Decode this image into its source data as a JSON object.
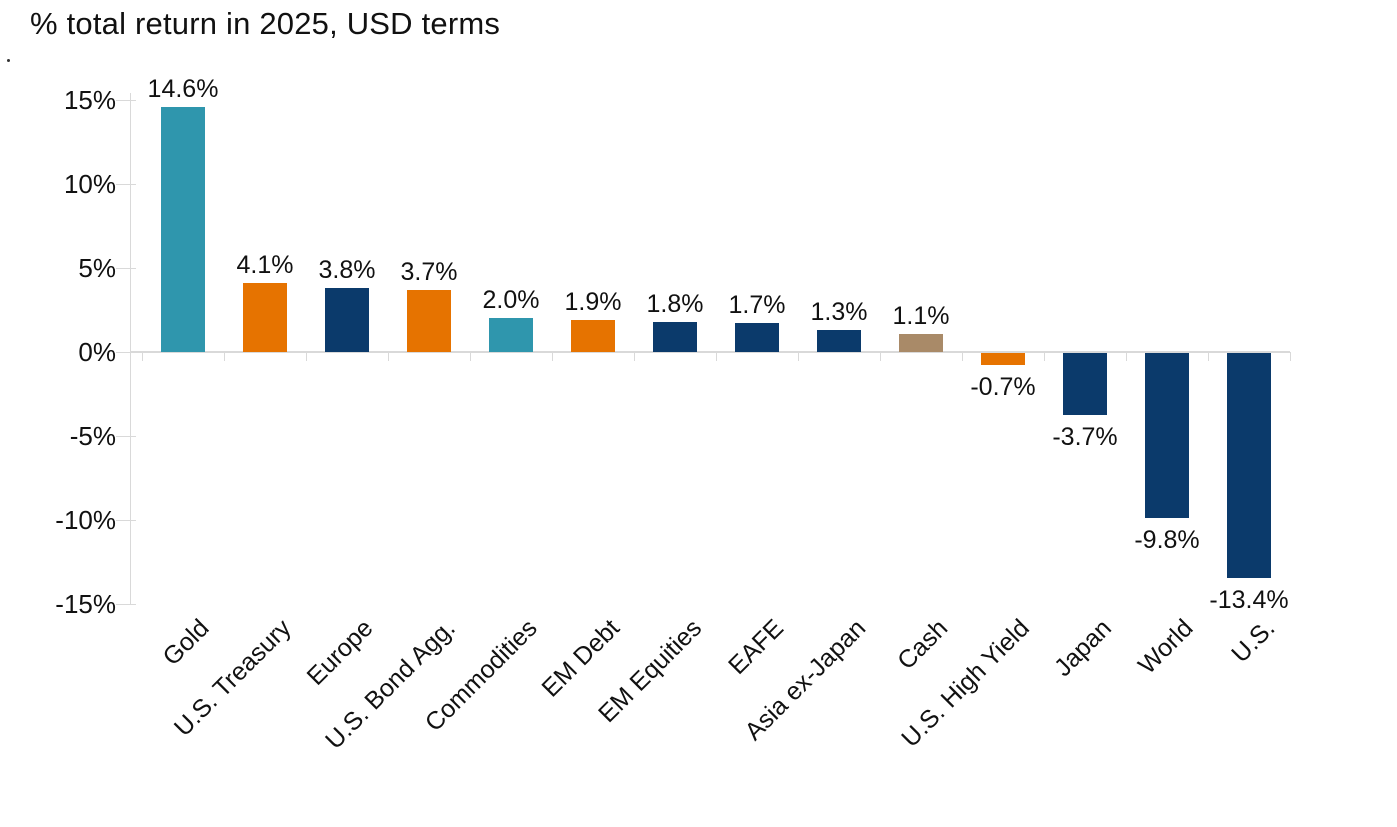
{
  "title": "% total return in 2025, USD terms",
  "stray_mark": ".",
  "chart_data": {
    "type": "bar",
    "title": "% total return in 2025, USD terms",
    "categories": [
      "Gold",
      "U.S. Treasury",
      "Europe",
      "U.S. Bond Agg.",
      "Commodities",
      "EM Debt",
      "EM Equities",
      "EAFE",
      "Asia ex-Japan",
      "Cash",
      "U.S. High Yield",
      "Japan",
      "World",
      "U.S."
    ],
    "values": [
      14.6,
      4.1,
      3.8,
      3.7,
      2.0,
      1.9,
      1.8,
      1.7,
      1.3,
      1.1,
      -0.7,
      -3.7,
      -9.8,
      -13.4
    ],
    "value_labels": [
      "14.6%",
      "4.1%",
      "3.8%",
      "3.7%",
      "2.0%",
      "1.9%",
      "1.8%",
      "1.7%",
      "1.3%",
      "1.1%",
      "-0.7%",
      "-3.7%",
      "-9.8%",
      "-13.4%"
    ],
    "bar_colors": [
      "#2F96AD",
      "#E67300",
      "#0B3A6B",
      "#E67300",
      "#2F96AD",
      "#E67300",
      "#0B3A6B",
      "#0B3A6B",
      "#0B3A6B",
      "#A98A68",
      "#E67300",
      "#0B3A6B",
      "#0B3A6B",
      "#0B3A6B"
    ],
    "palette": {
      "teal": "#2F96AD",
      "orange": "#E67300",
      "navy": "#0B3A6B",
      "tan": "#A98A68"
    },
    "xlabel": "",
    "ylabel": "",
    "ylim": [
      -15,
      15
    ],
    "yticks": {
      "values": [
        15,
        10,
        5,
        0,
        -5,
        -10,
        -15
      ],
      "labels": [
        "15%",
        "10%",
        "5%",
        "0%",
        "-5%",
        "-10%",
        "-15%"
      ]
    },
    "legend": "none",
    "grid": "zero baseline only",
    "axis_color": "#D9D9D9",
    "text_color": "#111111",
    "x_label_rotation_deg": 45
  }
}
